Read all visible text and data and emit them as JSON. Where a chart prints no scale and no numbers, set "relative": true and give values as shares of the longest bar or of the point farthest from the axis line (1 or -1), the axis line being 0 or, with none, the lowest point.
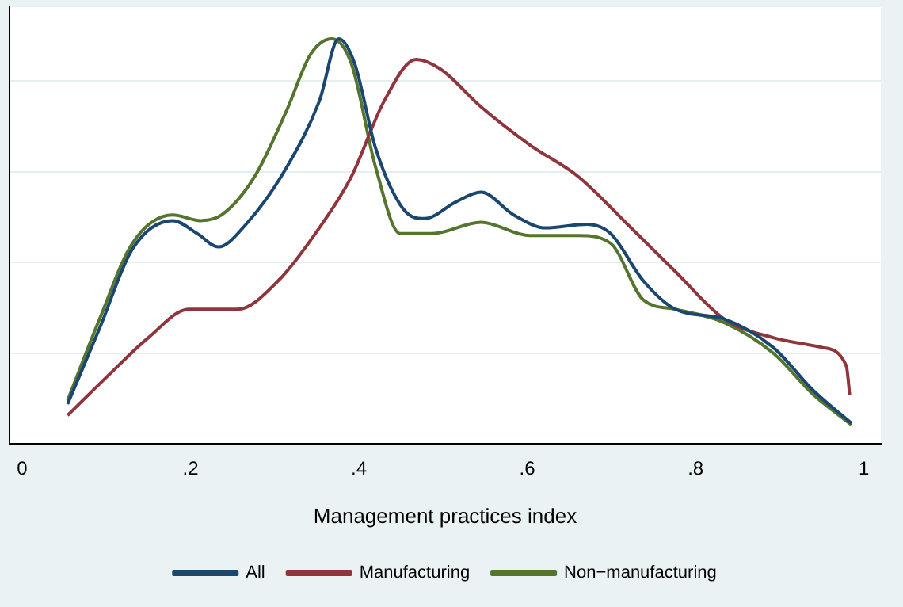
{
  "chart_data": {
    "type": "line",
    "xlabel": "Management practices index",
    "relative": true,
    "grid": "y",
    "legend": "bottom",
    "marker": "none",
    "line_style": "solid",
    "xlim": [
      -0.015,
      1.02
    ],
    "xticks": [
      0,
      {
        "value": 0.2,
        "label": ".2"
      },
      {
        "value": 0.4,
        "label": ".4"
      },
      {
        "value": 0.6,
        "label": ".6"
      },
      {
        "value": 0.8,
        "label": ".8"
      },
      1
    ],
    "series": [
      {
        "name": "All",
        "color": "#1a476f",
        "x": [
          0.054,
          0.092,
          0.131,
          0.179,
          0.208,
          0.233,
          0.266,
          0.314,
          0.353,
          0.376,
          0.395,
          0.42,
          0.453,
          0.478,
          0.516,
          0.545,
          0.584,
          0.622,
          0.671,
          0.699,
          0.738,
          0.776,
          0.834,
          0.892,
          0.94,
          0.985
        ],
        "values": [
          0.098,
          0.285,
          0.481,
          0.551,
          0.519,
          0.486,
          0.542,
          0.682,
          0.846,
          1.0,
          0.939,
          0.729,
          0.579,
          0.556,
          0.598,
          0.621,
          0.565,
          0.533,
          0.542,
          0.519,
          0.402,
          0.332,
          0.308,
          0.238,
          0.131,
          0.051
        ]
      },
      {
        "name": "Manufacturing",
        "color": "#90353b",
        "x": [
          0.054,
          0.102,
          0.15,
          0.198,
          0.256,
          0.304,
          0.353,
          0.391,
          0.43,
          0.468,
          0.497,
          0.545,
          0.603,
          0.661,
          0.719,
          0.776,
          0.834,
          0.892,
          0.95,
          0.979,
          0.983
        ],
        "values": [
          0.07,
          0.168,
          0.262,
          0.332,
          0.332,
          0.402,
          0.533,
          0.659,
          0.846,
          0.949,
          0.925,
          0.832,
          0.738,
          0.659,
          0.542,
          0.425,
          0.308,
          0.262,
          0.238,
          0.192,
          0.121
        ]
      },
      {
        "name": "Non−manufacturing",
        "color": "#55752f",
        "x": [
          0.054,
          0.092,
          0.131,
          0.179,
          0.212,
          0.237,
          0.276,
          0.314,
          0.343,
          0.368,
          0.391,
          0.42,
          0.449,
          0.487,
          0.545,
          0.603,
          0.661,
          0.699,
          0.738,
          0.776,
          0.834,
          0.892,
          0.94,
          0.985
        ],
        "values": [
          0.107,
          0.308,
          0.495,
          0.565,
          0.551,
          0.565,
          0.659,
          0.822,
          0.963,
          1.0,
          0.939,
          0.682,
          0.519,
          0.519,
          0.547,
          0.514,
          0.514,
          0.495,
          0.355,
          0.332,
          0.299,
          0.224,
          0.121,
          0.047
        ]
      }
    ]
  }
}
